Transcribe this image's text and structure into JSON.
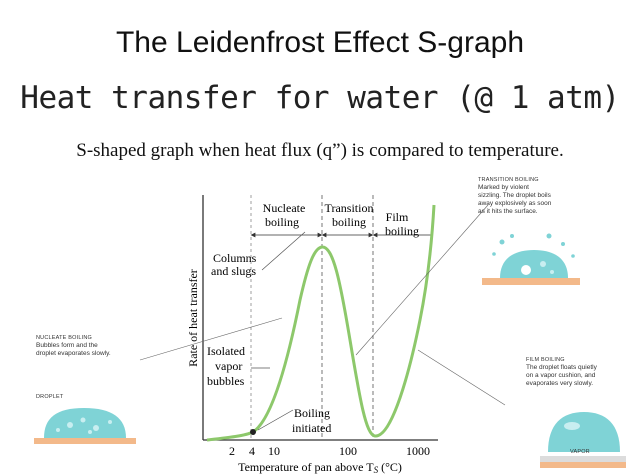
{
  "header": {
    "title": "The Leidenfrost Effect S-graph",
    "subtitle": "Heat transfer for water (@ 1 atm)",
    "caption": "S-shaped graph when heat flux (q”) is compared to temperature."
  },
  "chart": {
    "ylabel": "Rate of heat transfer",
    "xlabel": "Temperature of pan above T",
    "xlabel_sub": "S",
    "xlabel_unit": " (°C)",
    "xticks": [
      "2",
      "4",
      "10",
      "100",
      "1000"
    ],
    "regions": {
      "nucleate_line1": "Nucleate",
      "nucleate_line2": "boiling",
      "transition_line1": "Transition",
      "transition_line2": "boiling",
      "film_line1": "Film",
      "film_line2": "boiling"
    },
    "annotations": {
      "columns_line1": "Columns",
      "columns_line2": "and slugs",
      "isolated_line1": "Isolated",
      "isolated_line2": "vapor",
      "isolated_line3": "bubbles",
      "boiling_line1": "Boiling",
      "boiling_line2": "initiated"
    },
    "curve_color": "#8dc86b"
  },
  "side_notes": {
    "nucleate": {
      "heading": "Nucleate boiling",
      "line1": "Bubbles form and the",
      "line2": "droplet evaporates slowly."
    },
    "droplet_label": "Droplet",
    "transition": {
      "heading": "Transition boiling",
      "line1": "Marked by violent",
      "line2": "sizzling. The droplet boils",
      "line3": "away explosively as soon",
      "line4": "as it hits the surface."
    },
    "film": {
      "heading": "Film boiling",
      "line1": "The droplet floats quietly",
      "line2": "on a vapor cushion, and",
      "line3": "evaporates very slowly."
    },
    "vapor_label": "Vapor"
  },
  "colors": {
    "pan": "#f3b98a",
    "droplet": "#7fd3d6",
    "droplet_highlight": "#c8eef0"
  }
}
